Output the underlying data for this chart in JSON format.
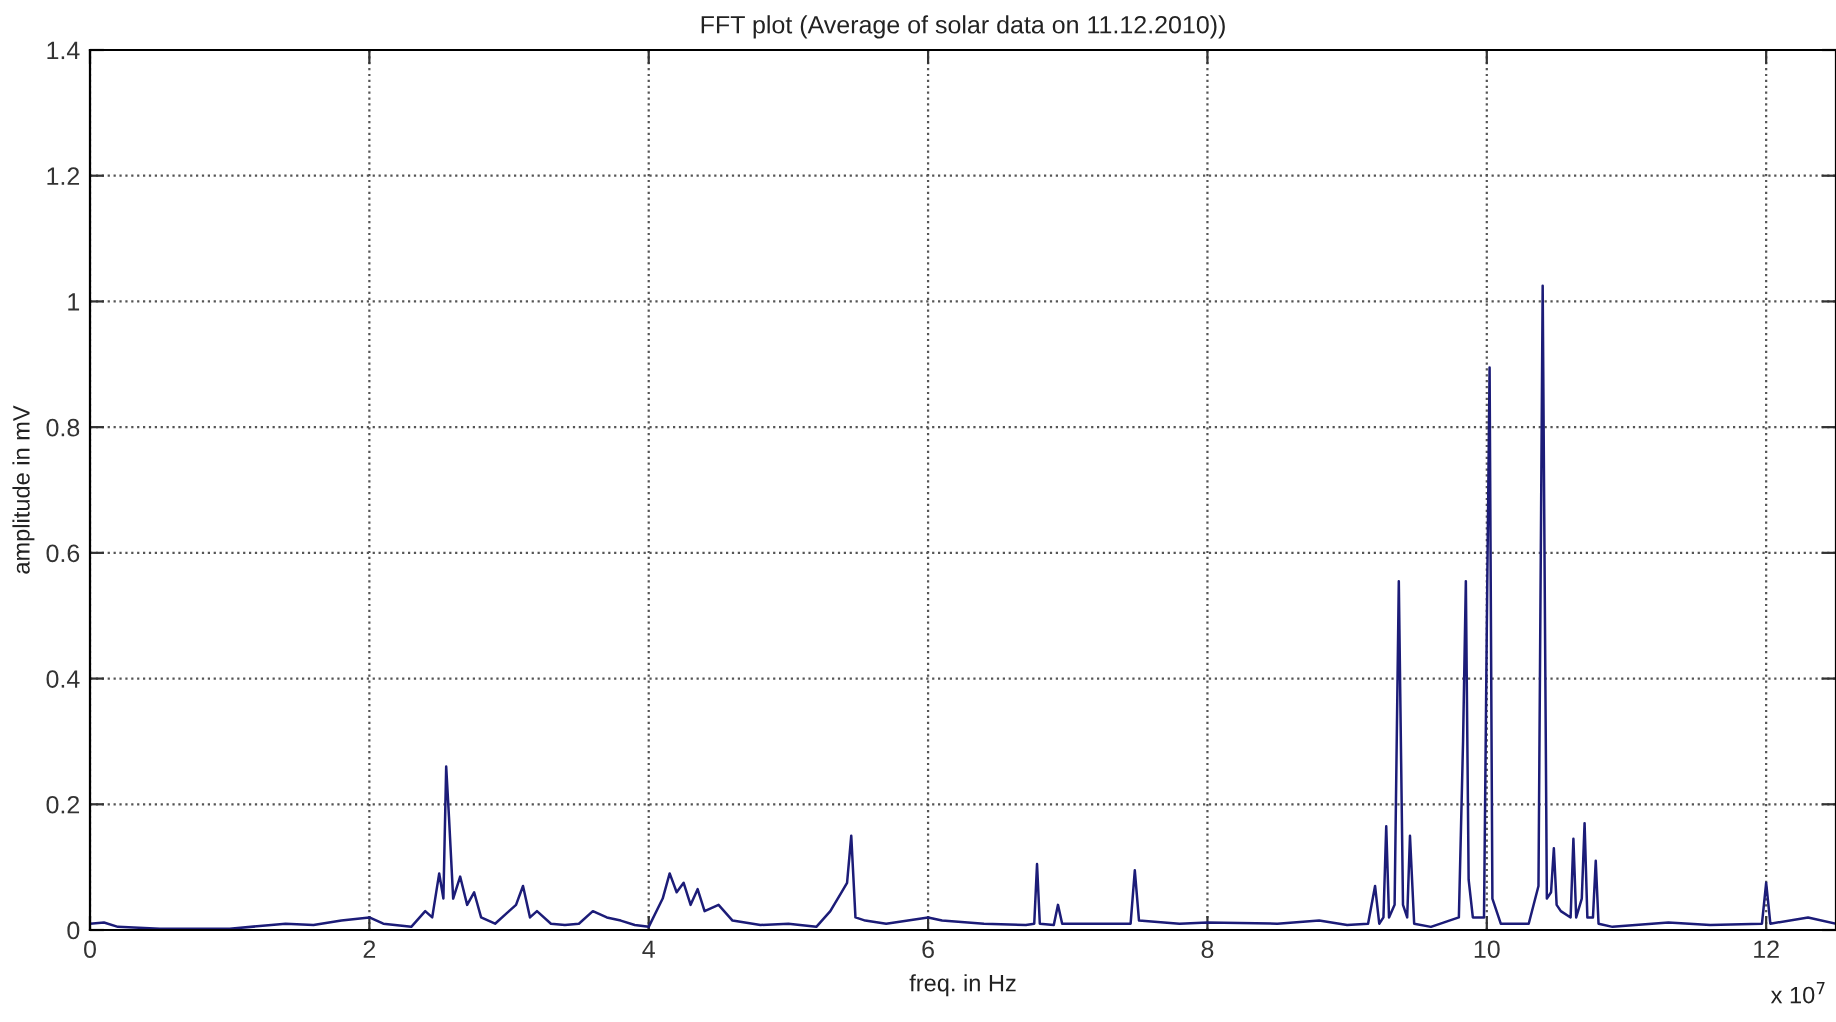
{
  "chart_data": {
    "type": "line",
    "title": "FFT plot (Average of solar data on 11.12.2010))",
    "xlabel": "freq. in Hz",
    "ylabel": "amplitude in mV",
    "annotations": [
      "x 10$^{7}$"
    ],
    "x": [
      0,
      0.1,
      0.2,
      0.5,
      1.0,
      1.4,
      1.6,
      1.8,
      2.0,
      2.1,
      2.3,
      2.4,
      2.45,
      2.5,
      2.53,
      2.55,
      2.57,
      2.6,
      2.65,
      2.7,
      2.75,
      2.8,
      2.9,
      3.0,
      3.05,
      3.1,
      3.15,
      3.2,
      3.3,
      3.4,
      3.5,
      3.6,
      3.7,
      3.8,
      3.9,
      4.0,
      4.1,
      4.15,
      4.2,
      4.25,
      4.3,
      4.35,
      4.4,
      4.5,
      4.6,
      4.8,
      5.0,
      5.2,
      5.3,
      5.38,
      5.42,
      5.45,
      5.48,
      5.55,
      5.7,
      6.0,
      6.1,
      6.4,
      6.7,
      6.76,
      6.78,
      6.8,
      6.9,
      6.93,
      6.96,
      7.2,
      7.45,
      7.48,
      7.51,
      7.8,
      8.0,
      8.5,
      8.8,
      9.0,
      9.15,
      9.2,
      9.23,
      9.26,
      9.28,
      9.3,
      9.34,
      9.37,
      9.4,
      9.43,
      9.45,
      9.48,
      9.6,
      9.8,
      9.83,
      9.85,
      9.87,
      9.9,
      9.98,
      10.0,
      10.02,
      10.04,
      10.1,
      10.3,
      10.37,
      10.4,
      10.43,
      10.46,
      10.48,
      10.5,
      10.53,
      10.6,
      10.62,
      10.64,
      10.68,
      10.7,
      10.72,
      10.76,
      10.78,
      10.8,
      10.9,
      11.3,
      11.6,
      11.97,
      12.0,
      12.03,
      12.3,
      12.5
    ],
    "series": [
      {
        "color": "#1c1c78",
        "values": [
          0.01,
          0.012,
          0.005,
          0.002,
          0.002,
          0.01,
          0.008,
          0.015,
          0.02,
          0.01,
          0.005,
          0.03,
          0.02,
          0.09,
          0.05,
          0.26,
          0.18,
          0.05,
          0.085,
          0.04,
          0.06,
          0.02,
          0.01,
          0.03,
          0.04,
          0.07,
          0.02,
          0.03,
          0.01,
          0.008,
          0.01,
          0.03,
          0.02,
          0.015,
          0.008,
          0.005,
          0.05,
          0.09,
          0.06,
          0.075,
          0.04,
          0.065,
          0.03,
          0.04,
          0.015,
          0.008,
          0.01,
          0.005,
          0.03,
          0.06,
          0.075,
          0.15,
          0.02,
          0.015,
          0.01,
          0.02,
          0.015,
          0.01,
          0.008,
          0.01,
          0.105,
          0.01,
          0.008,
          0.04,
          0.01,
          0.01,
          0.01,
          0.095,
          0.015,
          0.01,
          0.012,
          0.01,
          0.015,
          0.008,
          0.01,
          0.07,
          0.01,
          0.02,
          0.165,
          0.02,
          0.04,
          0.555,
          0.04,
          0.02,
          0.15,
          0.01,
          0.005,
          0.02,
          0.3,
          0.555,
          0.08,
          0.02,
          0.02,
          0.48,
          0.895,
          0.05,
          0.01,
          0.01,
          0.07,
          1.025,
          0.05,
          0.06,
          0.13,
          0.04,
          0.03,
          0.02,
          0.145,
          0.02,
          0.05,
          0.17,
          0.02,
          0.02,
          0.11,
          0.01,
          0.005,
          0.012,
          0.008,
          0.01,
          0.075,
          0.01,
          0.02,
          0.01
        ]
      }
    ],
    "xlim": [
      0,
      12.5
    ],
    "xticks": [
      0,
      2,
      4,
      6,
      8,
      10,
      12
    ],
    "ylim": [
      0,
      1.4
    ],
    "yticks": [
      0,
      0.2,
      0.4,
      0.6,
      0.8,
      1,
      1.2,
      1.4
    ],
    "grid": true,
    "line_style": "solid",
    "marker": "none"
  }
}
